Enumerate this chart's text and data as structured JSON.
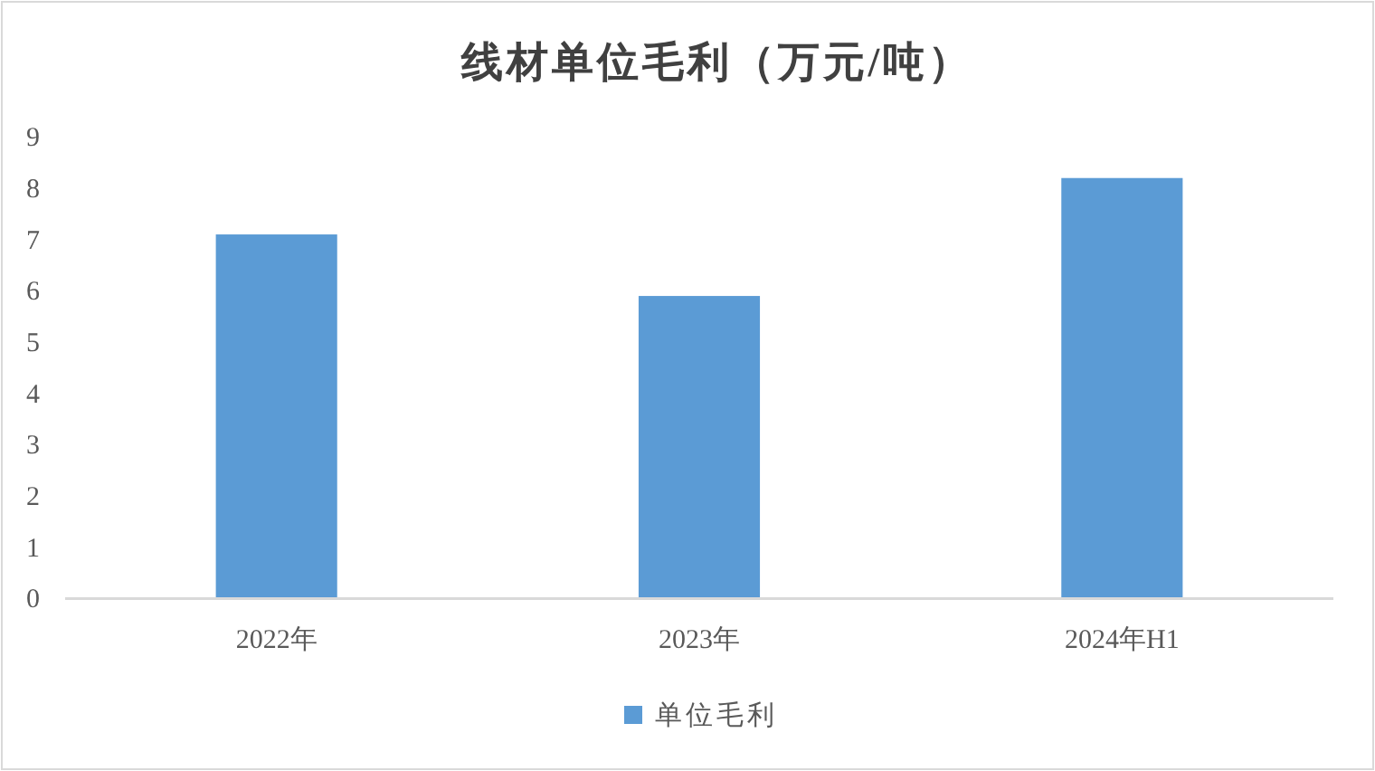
{
  "chart_data": {
    "type": "bar",
    "title": "线材单位毛利（万元/吨）",
    "categories": [
      "2022年",
      "2023年",
      "2024年H1"
    ],
    "series": [
      {
        "name": "单位毛利",
        "color": "#5b9bd5",
        "values": [
          7.1,
          5.9,
          8.2
        ]
      }
    ],
    "ylim": [
      0,
      9
    ],
    "yticks": [
      0,
      1,
      2,
      3,
      4,
      5,
      6,
      7,
      8,
      9
    ],
    "legend": "bottom"
  }
}
